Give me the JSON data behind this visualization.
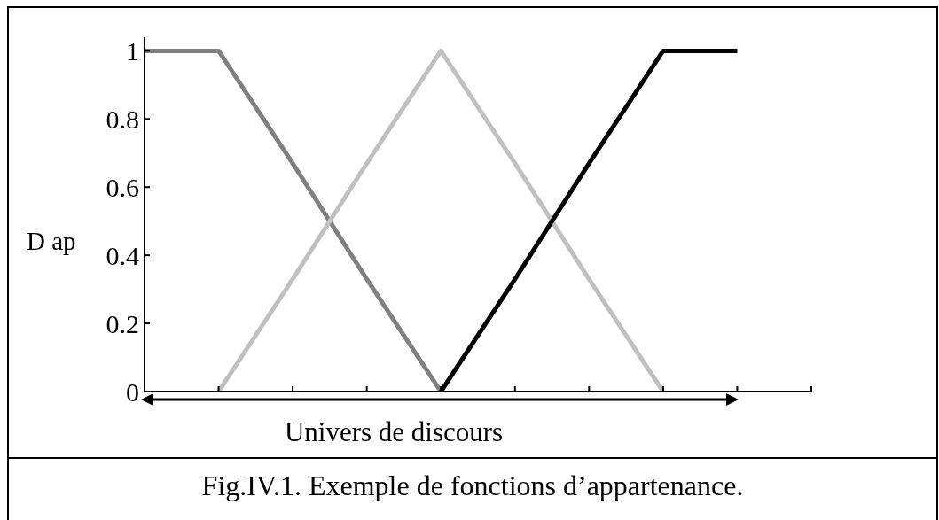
{
  "chart_data": {
    "type": "line",
    "xlabel": "Univers de discours",
    "ylabel": "D ap",
    "annotations": [
      "Fig.IV.1. Exemple de fonctions d’appartenance."
    ],
    "categories": [
      null,
      null,
      null,
      null,
      null,
      null,
      null,
      null,
      null,
      null
    ],
    "series": [
      {
        "color": "#808080",
        "values": [
          1,
          1,
          0.67,
          0.33,
          0,
          null,
          null,
          null,
          null,
          null
        ]
      },
      {
        "color": "#c0c0c0",
        "values": [
          null,
          0,
          0.33,
          0.67,
          1,
          0.67,
          0.33,
          0,
          null,
          null
        ]
      },
      {
        "color": "#000000",
        "values": [
          null,
          null,
          null,
          null,
          0,
          0.33,
          0.67,
          1,
          1,
          null
        ]
      }
    ],
    "ylim": [
      0,
      1.04
    ],
    "yticks": [
      0,
      0.2,
      0.4,
      0.6,
      0.8,
      1
    ],
    "marker": "none",
    "line_style": "solid"
  }
}
